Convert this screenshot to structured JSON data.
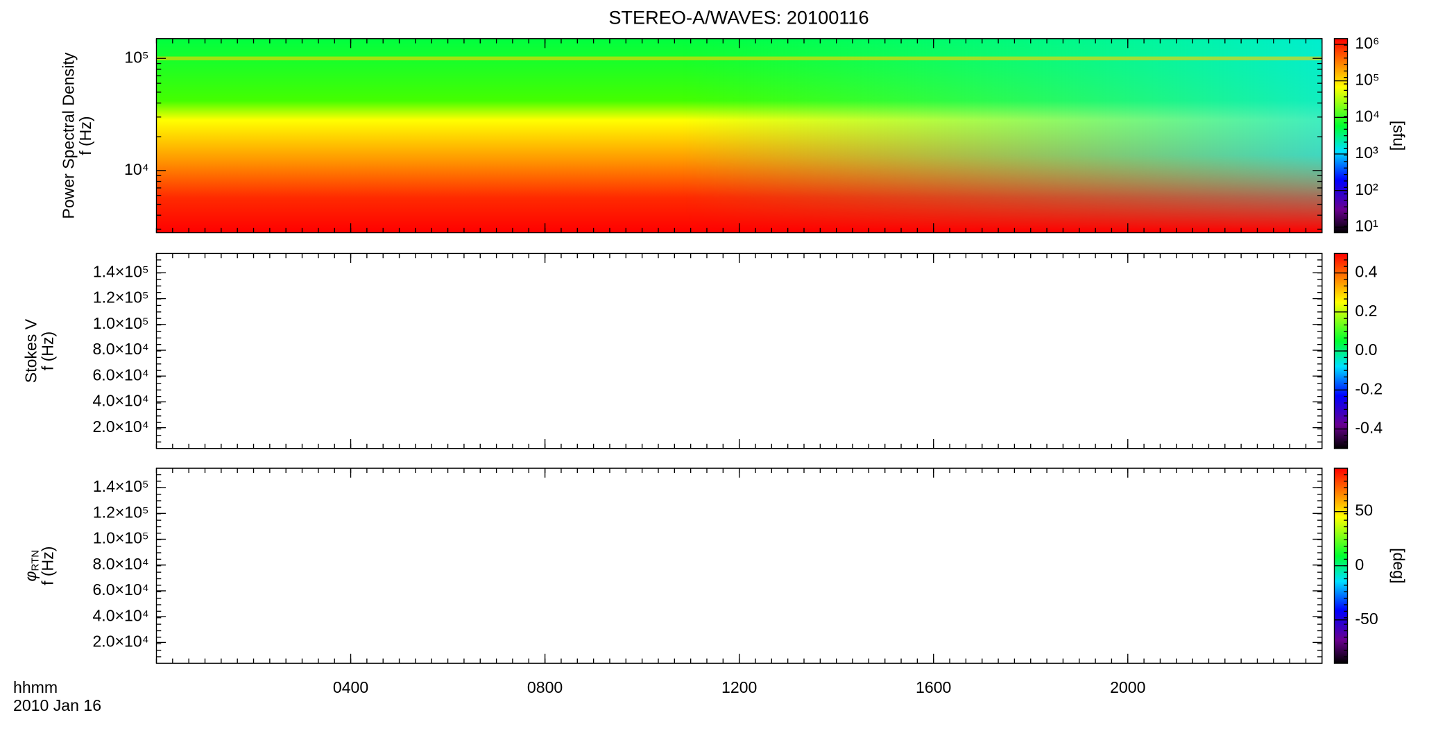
{
  "chart_data": [
    {
      "type": "heatmap",
      "title": "STEREO-A/WAVES: 20100116",
      "ylabel": [
        "Power Spectral Density",
        "f (Hz)"
      ],
      "ylog": true,
      "ylim": [
        2790,
        150000
      ],
      "yticks": [
        {
          "value": 10000,
          "label": "10⁴"
        },
        {
          "value": 100000,
          "label": "10⁵"
        }
      ],
      "xlim": [
        0,
        24
      ],
      "xticks": [
        {
          "value": 4,
          "label": "0400"
        },
        {
          "value": 8,
          "label": "0800"
        },
        {
          "value": 12,
          "label": "1200"
        },
        {
          "value": 16,
          "label": "1600"
        },
        {
          "value": 20,
          "label": "2000"
        }
      ],
      "colorbar": {
        "log": true,
        "lim": [
          7,
          1430000
        ],
        "label": "[sfu]",
        "ticks": [
          {
            "value": 10,
            "label": "10¹"
          },
          {
            "value": 100,
            "label": "10²"
          },
          {
            "value": 1000,
            "label": "10³"
          },
          {
            "value": 10000,
            "label": "10⁴"
          },
          {
            "value": 100000,
            "label": "10⁵"
          },
          {
            "value": 1000000,
            "label": "10⁶"
          }
        ]
      }
    },
    {
      "type": "heatmap",
      "ylabel": [
        "Stokes V",
        "f (Hz)"
      ],
      "ylog": false,
      "ylim": [
        3900,
        155000
      ],
      "yticks": [
        {
          "value": 20000,
          "label": "2.0×10⁴"
        },
        {
          "value": 40000,
          "label": "4.0×10⁴"
        },
        {
          "value": 60000,
          "label": "6.0×10⁴"
        },
        {
          "value": 80000,
          "label": "8.0×10⁴"
        },
        {
          "value": 100000,
          "label": "1.0×10⁵"
        },
        {
          "value": 120000,
          "label": "1.2×10⁵"
        },
        {
          "value": 140000,
          "label": "1.4×10⁵"
        }
      ],
      "xlim": [
        0,
        24
      ],
      "xticks": [
        {
          "value": 4,
          "label": "0400"
        },
        {
          "value": 8,
          "label": "0800"
        },
        {
          "value": 12,
          "label": "1200"
        },
        {
          "value": 16,
          "label": "1600"
        },
        {
          "value": 20,
          "label": "2000"
        }
      ],
      "colorbar": {
        "log": false,
        "lim": [
          -0.5,
          0.5
        ],
        "ticks": [
          -0.4,
          -0.2,
          {
            "value": 0,
            "label": "0.0"
          },
          0.2,
          0.4
        ]
      }
    },
    {
      "type": "heatmap",
      "ylabel_symbol": "φ",
      "ylabel_subscript": "RTN",
      "ylabel": [
        "f (Hz)"
      ],
      "ylog": false,
      "ylim": [
        3900,
        155000
      ],
      "yticks": [
        {
          "value": 20000,
          "label": "2.0×10⁴"
        },
        {
          "value": 40000,
          "label": "4.0×10⁴"
        },
        {
          "value": 60000,
          "label": "6.0×10⁴"
        },
        {
          "value": 80000,
          "label": "8.0×10⁴"
        },
        {
          "value": 100000,
          "label": "1.0×10⁵"
        },
        {
          "value": 120000,
          "label": "1.2×10⁵"
        },
        {
          "value": 140000,
          "label": "1.4×10⁵"
        }
      ],
      "xlim": [
        0,
        24
      ],
      "xticks": [
        {
          "value": 4,
          "label": "0400"
        },
        {
          "value": 8,
          "label": "0800"
        },
        {
          "value": 12,
          "label": "1200"
        },
        {
          "value": 16,
          "label": "1600"
        },
        {
          "value": 20,
          "label": "2000"
        }
      ],
      "xlabel": [
        "hhmm",
        "2010 Jan 16"
      ],
      "colorbar": {
        "log": false,
        "lim": [
          -90,
          90
        ],
        "label": "[deg]",
        "ticks": [
          -50,
          0,
          50
        ]
      }
    }
  ]
}
